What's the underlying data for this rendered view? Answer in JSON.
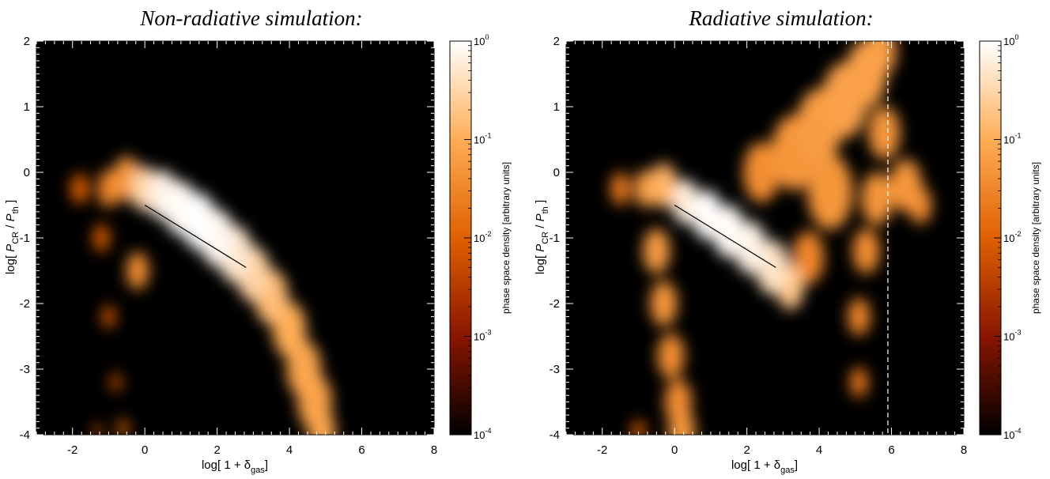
{
  "colors": {
    "colormap": [
      "#000000",
      "#8a1500",
      "#e06000",
      "#ffad55",
      "#ffffff"
    ],
    "background": "#000000",
    "fit_line": "#000000",
    "marker_line": "#ffffff"
  },
  "chart_data": [
    {
      "type": "heatmap",
      "title": "Non-radiative simulation:",
      "xlabel": "log[ 1 + δgas]",
      "ylabel": "log[ PCR / Pth ]",
      "xlim": [
        -3,
        8
      ],
      "ylim": [
        -4,
        2
      ],
      "xticks": [
        -2,
        0,
        2,
        4,
        6,
        8
      ],
      "yticks": [
        -4,
        -3,
        -2,
        -1,
        0,
        1,
        2
      ],
      "scale": "log color",
      "fit_line": {
        "x": [
          0.0,
          2.8
        ],
        "y": [
          -0.5,
          -1.45
        ]
      },
      "density_ridge": [
        {
          "x": -1.8,
          "y": -0.25,
          "w": 0.2,
          "level": 0.01
        },
        {
          "x": -1.0,
          "y": -0.25,
          "w": 0.25,
          "level": 0.03
        },
        {
          "x": -0.5,
          "y": -0.1,
          "w": 0.3,
          "level": 0.05
        },
        {
          "x": 0.0,
          "y": -0.25,
          "w": 0.3,
          "level": 0.3
        },
        {
          "x": 0.5,
          "y": -0.35,
          "w": 0.33,
          "level": 0.7
        },
        {
          "x": 1.0,
          "y": -0.55,
          "w": 0.36,
          "level": 0.9
        },
        {
          "x": 1.5,
          "y": -0.75,
          "w": 0.38,
          "level": 0.95
        },
        {
          "x": 2.0,
          "y": -1.0,
          "w": 0.38,
          "level": 0.8
        },
        {
          "x": 2.5,
          "y": -1.25,
          "w": 0.38,
          "level": 0.5
        },
        {
          "x": 3.0,
          "y": -1.55,
          "w": 0.37,
          "level": 0.28
        },
        {
          "x": 3.5,
          "y": -1.9,
          "w": 0.37,
          "level": 0.15
        },
        {
          "x": 4.0,
          "y": -2.4,
          "w": 0.37,
          "level": 0.1
        },
        {
          "x": 4.4,
          "y": -3.0,
          "w": 0.38,
          "level": 0.08
        },
        {
          "x": 4.7,
          "y": -3.5,
          "w": 0.38,
          "level": 0.07
        },
        {
          "x": 4.9,
          "y": -3.95,
          "w": 0.3,
          "level": 0.08
        }
      ],
      "density_spurs": [
        {
          "x": -1.2,
          "y": -1.0,
          "w": 0.18,
          "level": 0.01
        },
        {
          "x": -1.0,
          "y": -2.2,
          "w": 0.15,
          "level": 0.008
        },
        {
          "x": -0.8,
          "y": -3.2,
          "w": 0.12,
          "level": 0.008
        },
        {
          "x": -0.6,
          "y": -3.9,
          "w": 0.12,
          "level": 0.015
        },
        {
          "x": -1.3,
          "y": -3.95,
          "w": 0.1,
          "level": 0.006
        },
        {
          "x": -0.2,
          "y": -1.5,
          "w": 0.25,
          "level": 0.04
        }
      ]
    },
    {
      "type": "heatmap",
      "title": "Radiative simulation:",
      "xlabel": "log[ 1 + δgas]",
      "ylabel": "log[ PCR / Pth ]",
      "xlim": [
        -3,
        8
      ],
      "ylim": [
        -4,
        2
      ],
      "xticks": [
        -2,
        0,
        2,
        4,
        6,
        8
      ],
      "yticks": [
        -4,
        -3,
        -2,
        -1,
        0,
        1,
        2
      ],
      "scale": "log color",
      "fit_line": {
        "x": [
          0.0,
          2.8
        ],
        "y": [
          -0.5,
          -1.45
        ]
      },
      "vertical_marker_x": 5.9,
      "density_ridge": [
        {
          "x": -1.5,
          "y": -0.25,
          "w": 0.22,
          "level": 0.02
        },
        {
          "x": -0.8,
          "y": -0.25,
          "w": 0.25,
          "level": 0.06
        },
        {
          "x": -0.3,
          "y": -0.2,
          "w": 0.3,
          "level": 0.12
        },
        {
          "x": 0.3,
          "y": -0.45,
          "w": 0.3,
          "level": 0.6
        },
        {
          "x": 0.9,
          "y": -0.65,
          "w": 0.33,
          "level": 0.95
        },
        {
          "x": 1.5,
          "y": -0.9,
          "w": 0.35,
          "level": 0.9
        },
        {
          "x": 2.1,
          "y": -1.15,
          "w": 0.35,
          "level": 0.7
        },
        {
          "x": 2.7,
          "y": -1.45,
          "w": 0.36,
          "level": 0.45
        },
        {
          "x": 3.2,
          "y": -1.75,
          "w": 0.3,
          "level": 0.2
        }
      ],
      "density_spurs": [
        {
          "x": -0.5,
          "y": -1.2,
          "w": 0.3,
          "level": 0.06
        },
        {
          "x": -0.3,
          "y": -2.0,
          "w": 0.3,
          "level": 0.05
        },
        {
          "x": -0.1,
          "y": -2.8,
          "w": 0.3,
          "level": 0.04
        },
        {
          "x": 0.1,
          "y": -3.5,
          "w": 0.3,
          "level": 0.04
        },
        {
          "x": 0.2,
          "y": -3.95,
          "w": 0.3,
          "level": 0.05
        },
        {
          "x": -1.0,
          "y": -3.95,
          "w": 0.15,
          "level": 0.01
        },
        {
          "x": 2.4,
          "y": 0.0,
          "w": 0.4,
          "level": 0.04
        },
        {
          "x": 3.3,
          "y": 0.3,
          "w": 0.5,
          "level": 0.05
        },
        {
          "x": 4.0,
          "y": 0.7,
          "w": 0.5,
          "level": 0.06
        },
        {
          "x": 4.7,
          "y": 1.1,
          "w": 0.5,
          "level": 0.07
        },
        {
          "x": 5.3,
          "y": 1.5,
          "w": 0.45,
          "level": 0.07
        },
        {
          "x": 5.7,
          "y": 1.85,
          "w": 0.35,
          "level": 0.06
        },
        {
          "x": 5.8,
          "y": 0.6,
          "w": 0.35,
          "level": 0.05
        },
        {
          "x": 5.6,
          "y": -0.4,
          "w": 0.35,
          "level": 0.05
        },
        {
          "x": 5.3,
          "y": -1.2,
          "w": 0.3,
          "level": 0.04
        },
        {
          "x": 5.1,
          "y": -2.2,
          "w": 0.25,
          "level": 0.03
        },
        {
          "x": 5.1,
          "y": -3.2,
          "w": 0.2,
          "level": 0.02
        },
        {
          "x": 6.4,
          "y": -0.2,
          "w": 0.35,
          "level": 0.05
        },
        {
          "x": 6.8,
          "y": -0.5,
          "w": 0.25,
          "level": 0.04
        },
        {
          "x": 4.3,
          "y": -0.3,
          "w": 0.5,
          "level": 0.05
        },
        {
          "x": 3.7,
          "y": -1.3,
          "w": 0.35,
          "level": 0.03
        }
      ]
    }
  ],
  "colorbar": {
    "label": "phase space density [arbitrary units]",
    "range": [
      0.0001,
      1
    ],
    "ticks": [
      {
        "base": "10",
        "exp": "0",
        "value": 1
      },
      {
        "base": "10",
        "exp": "-1",
        "value": 0.1
      },
      {
        "base": "10",
        "exp": "-2",
        "value": 0.01
      },
      {
        "base": "10",
        "exp": "-3",
        "value": 0.001
      },
      {
        "base": "10",
        "exp": "-4",
        "value": 0.0001
      }
    ]
  }
}
